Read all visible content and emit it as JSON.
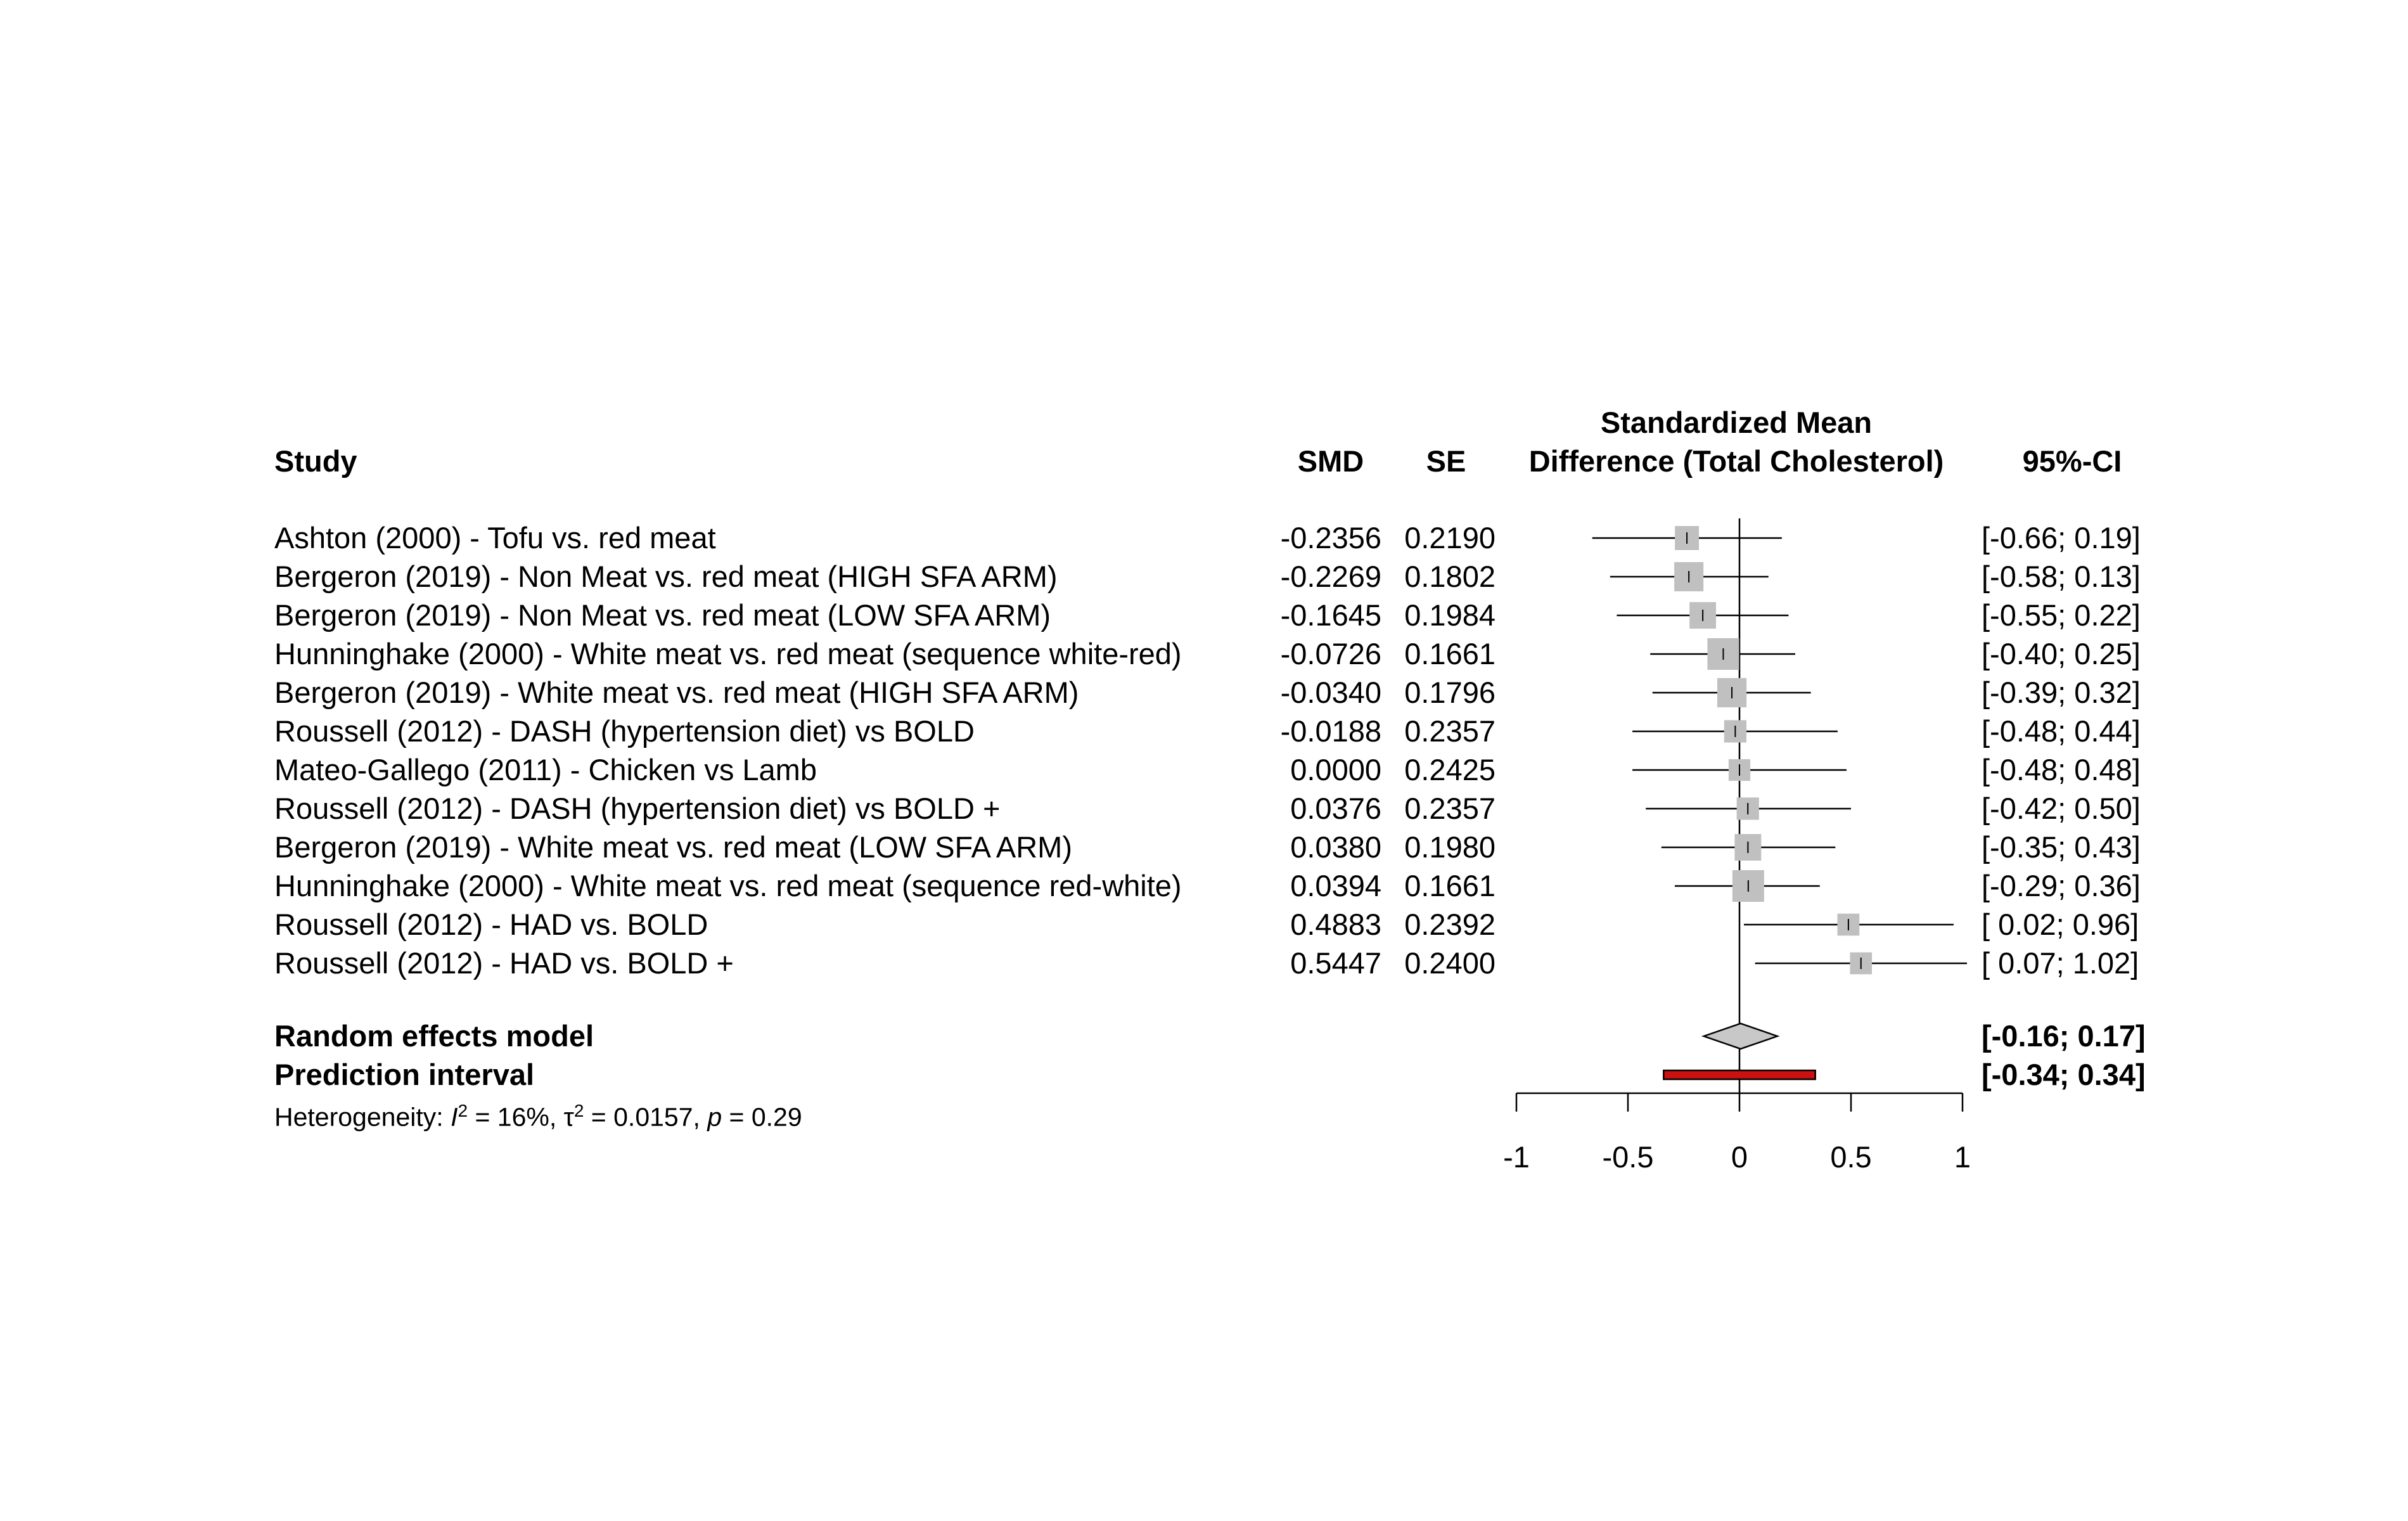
{
  "chart_data": {
    "type": "forest",
    "columns": {
      "study": "Study",
      "smd": "SMD",
      "se": "SE",
      "axis_title_line1": "Standardized Mean",
      "axis_title_line2": "Difference (Total Cholesterol)",
      "ci": "95%-CI"
    },
    "studies": [
      {
        "study": "Ashton (2000) - Tofu vs. red meat",
        "smd_text": "-0.2356",
        "se_text": "0.2190",
        "ci_text": "[-0.66; 0.19]",
        "smd": -0.2356,
        "lower": -0.66,
        "upper": 0.19,
        "se": 0.219
      },
      {
        "study": "Bergeron (2019) - Non Meat vs. red meat   (HIGH SFA ARM)",
        "smd_text": "-0.2269",
        "se_text": "0.1802",
        "ci_text": "[-0.58; 0.13]",
        "smd": -0.2269,
        "lower": -0.58,
        "upper": 0.13,
        "se": 0.1802
      },
      {
        "study": "Bergeron (2019) - Non Meat vs. red meat   (LOW SFA ARM)",
        "smd_text": "-0.1645",
        "se_text": "0.1984",
        "ci_text": "[-0.55; 0.22]",
        "smd": -0.1645,
        "lower": -0.55,
        "upper": 0.22,
        "se": 0.1984
      },
      {
        "study": "Hunninghake (2000) - White meat vs. red meat (sequence white-red)",
        "smd_text": "-0.0726",
        "se_text": "0.1661",
        "ci_text": "[-0.40; 0.25]",
        "smd": -0.0726,
        "lower": -0.4,
        "upper": 0.25,
        "se": 0.1661
      },
      {
        "study": "Bergeron (2019) - White meat vs. red meat   (HIGH SFA ARM)",
        "smd_text": "-0.0340",
        "se_text": "0.1796",
        "ci_text": "[-0.39; 0.32]",
        "smd": -0.034,
        "lower": -0.39,
        "upper": 0.32,
        "se": 0.1796
      },
      {
        "study": "Roussell (2012) - DASH (hypertension diet) vs BOLD",
        "smd_text": "-0.0188",
        "se_text": "0.2357",
        "ci_text": "[-0.48; 0.44]",
        "smd": -0.0188,
        "lower": -0.48,
        "upper": 0.44,
        "se": 0.2357
      },
      {
        "study": "Mateo-Gallego (2011) - Chicken vs Lamb",
        "smd_text": "0.0000",
        "se_text": "0.2425",
        "ci_text": "[-0.48; 0.48]",
        "smd": 0.0,
        "lower": -0.48,
        "upper": 0.48,
        "se": 0.2425
      },
      {
        "study": "Roussell (2012) - DASH (hypertension diet) vs BOLD +",
        "smd_text": "0.0376",
        "se_text": "0.2357",
        "ci_text": "[-0.42; 0.50]",
        "smd": 0.0376,
        "lower": -0.42,
        "upper": 0.5,
        "se": 0.2357
      },
      {
        "study": "Bergeron (2019) - White meat vs. red meat   (LOW SFA ARM)",
        "smd_text": "0.0380",
        "se_text": "0.1980",
        "ci_text": "[-0.35; 0.43]",
        "smd": 0.038,
        "lower": -0.35,
        "upper": 0.43,
        "se": 0.198
      },
      {
        "study": "Hunninghake (2000) - White meat vs. red meat (sequence red-white)",
        "smd_text": "0.0394",
        "se_text": "0.1661",
        "ci_text": "[-0.29; 0.36]",
        "smd": 0.0394,
        "lower": -0.29,
        "upper": 0.36,
        "se": 0.1661
      },
      {
        "study": "Roussell (2012) - HAD vs. BOLD",
        "smd_text": "0.4883",
        "se_text": "0.2392",
        "ci_text": "[ 0.02; 0.96]",
        "smd": 0.4883,
        "lower": 0.02,
        "upper": 0.96,
        "se": 0.2392
      },
      {
        "study": "Roussell (2012) - HAD vs. BOLD +",
        "smd_text": "0.5447",
        "se_text": "0.2400",
        "ci_text": "[ 0.07; 1.02]",
        "smd": 0.5447,
        "lower": 0.07,
        "upper": 1.02,
        "se": 0.24
      }
    ],
    "random_effects": {
      "label": "Random effects model",
      "ci_text": "[-0.16; 0.17]",
      "estimate": 0.005,
      "lower": -0.16,
      "upper": 0.17
    },
    "prediction_interval": {
      "label": "Prediction interval",
      "ci_text": "[-0.34; 0.34]",
      "lower": -0.34,
      "upper": 0.34
    },
    "heterogeneity": {
      "prefix": "Heterogeneity: ",
      "i2_symbol": "I",
      "i2_value": " = 16%, ",
      "tau2_symbol": "τ",
      "tau2_value": " = 0.0157, ",
      "p_symbol": "p",
      "p_value": " = 0.29"
    },
    "xlim": [
      -1,
      1
    ],
    "ticks": [
      -1,
      -0.5,
      0,
      0.5,
      1
    ],
    "tick_labels": [
      "-1",
      "-0.5",
      "0",
      "0.5",
      "1"
    ],
    "colors": {
      "square": "#c0c0c0",
      "diamond": "#c8c8c8",
      "prediction": "#cc1111"
    }
  }
}
